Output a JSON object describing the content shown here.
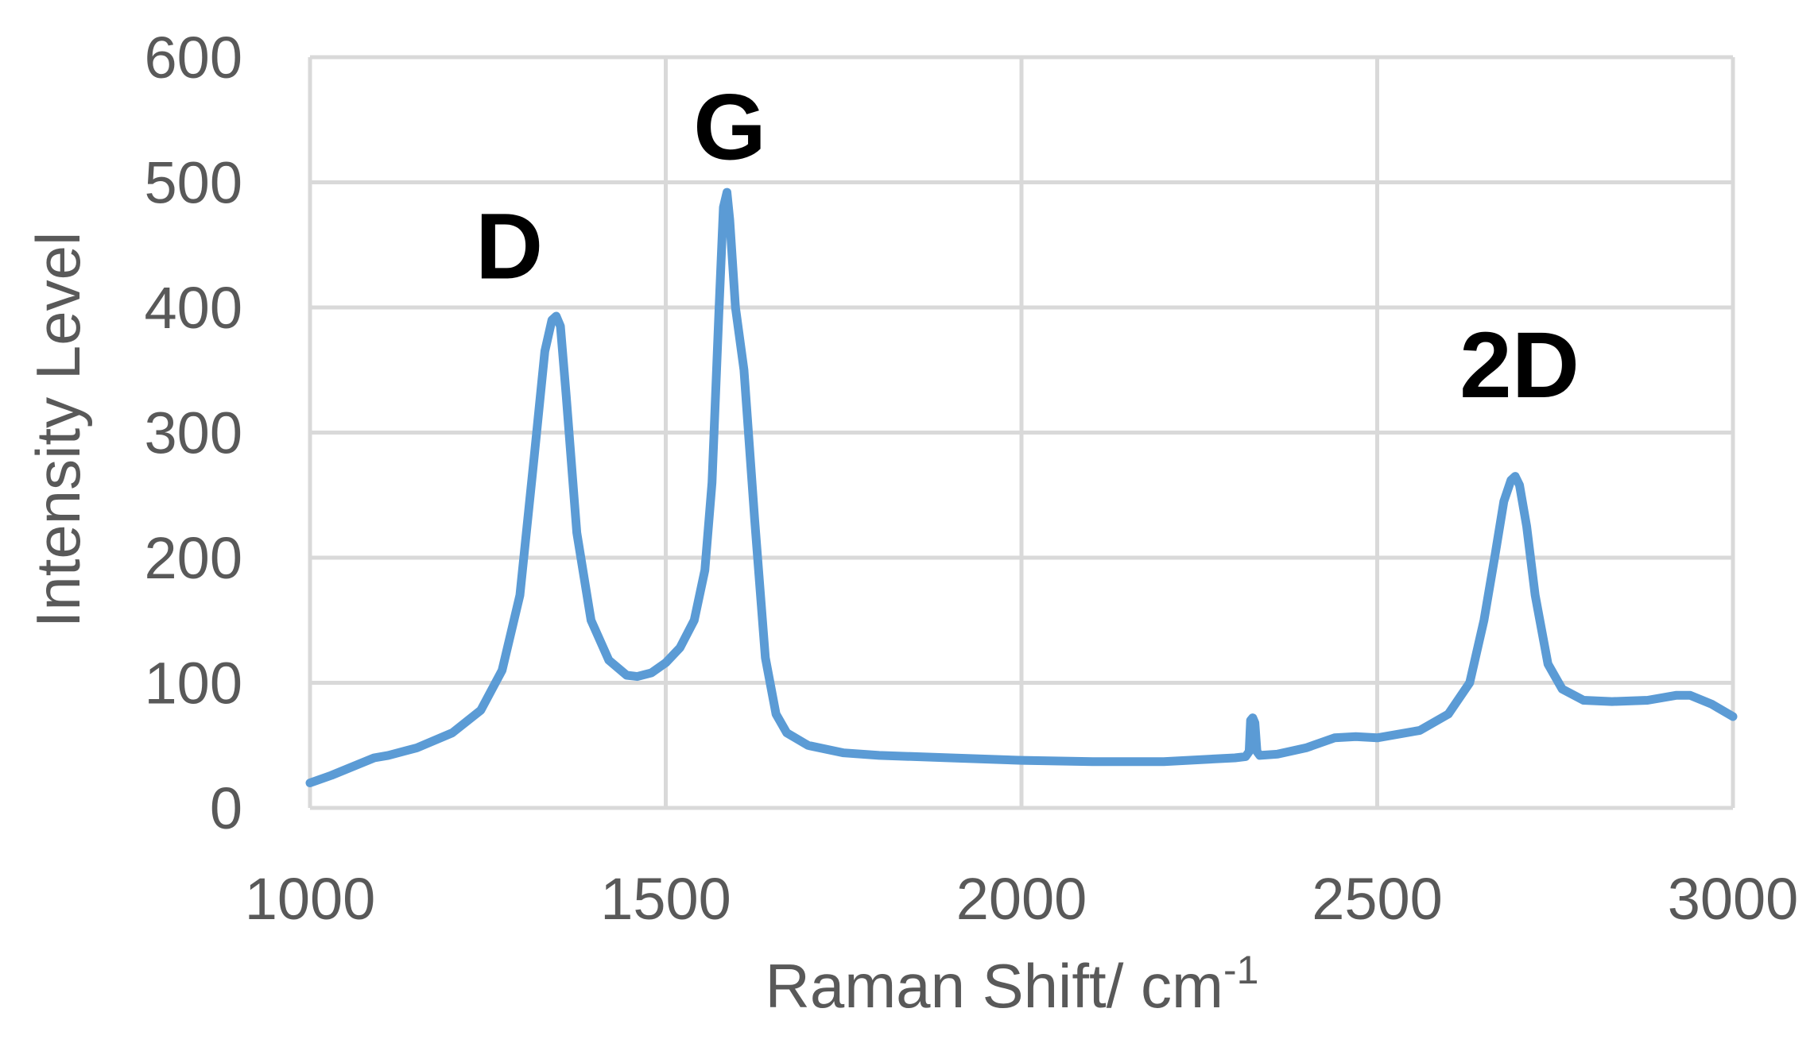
{
  "chart_data": {
    "type": "line",
    "title": "",
    "xlabel": "Raman Shift/ cm",
    "xlabel_superscript": "-1",
    "ylabel": "Intensity Level",
    "xlim": [
      1000,
      3000
    ],
    "ylim": [
      0,
      600
    ],
    "x_ticks": [
      1000,
      1500,
      2000,
      2500,
      3000
    ],
    "y_ticks": [
      0,
      100,
      200,
      300,
      400,
      500,
      600
    ],
    "x_tick_labels": [
      "1000",
      "1500",
      "2000",
      "2500",
      "3000"
    ],
    "y_tick_labels": [
      "0",
      "100",
      "200",
      "300",
      "400",
      "500",
      "600"
    ],
    "grid": true,
    "legend": "none",
    "series": [
      {
        "color": "#5B9BD5",
        "x": [
          1000,
          1030,
          1060,
          1090,
          1110,
          1150,
          1200,
          1240,
          1270,
          1295,
          1315,
          1330,
          1340,
          1346,
          1352,
          1360,
          1375,
          1395,
          1420,
          1445,
          1460,
          1480,
          1500,
          1520,
          1540,
          1555,
          1565,
          1575,
          1581,
          1586,
          1590,
          1598,
          1610,
          1625,
          1640,
          1655,
          1670,
          1700,
          1750,
          1800,
          1900,
          2000,
          2100,
          2200,
          2300,
          2315,
          2320,
          2322,
          2325,
          2328,
          2331,
          2335,
          2360,
          2400,
          2440,
          2470,
          2500,
          2560,
          2600,
          2630,
          2650,
          2665,
          2678,
          2688,
          2694,
          2700,
          2710,
          2722,
          2740,
          2760,
          2790,
          2830,
          2880,
          2920,
          2940,
          2970,
          3000
        ],
        "y": [
          20,
          26,
          33,
          40,
          42,
          48,
          60,
          78,
          110,
          170,
          280,
          365,
          390,
          393,
          385,
          330,
          220,
          150,
          118,
          106,
          105,
          108,
          116,
          128,
          150,
          190,
          260,
          400,
          480,
          492,
          470,
          400,
          350,
          230,
          120,
          75,
          60,
          50,
          44,
          42,
          40,
          38,
          37,
          37,
          40,
          41,
          45,
          70,
          72,
          68,
          45,
          42,
          43,
          48,
          56,
          57,
          56,
          62,
          75,
          100,
          150,
          200,
          245,
          262,
          265,
          258,
          225,
          170,
          115,
          95,
          86,
          85,
          86,
          90,
          90,
          83,
          73
        ]
      }
    ],
    "annotations": [
      {
        "text": "D",
        "x": 1280,
        "y": 450
      },
      {
        "text": "G",
        "x": 1590,
        "y": 545
      },
      {
        "text": "2D",
        "x": 2700,
        "y": 355
      }
    ]
  }
}
